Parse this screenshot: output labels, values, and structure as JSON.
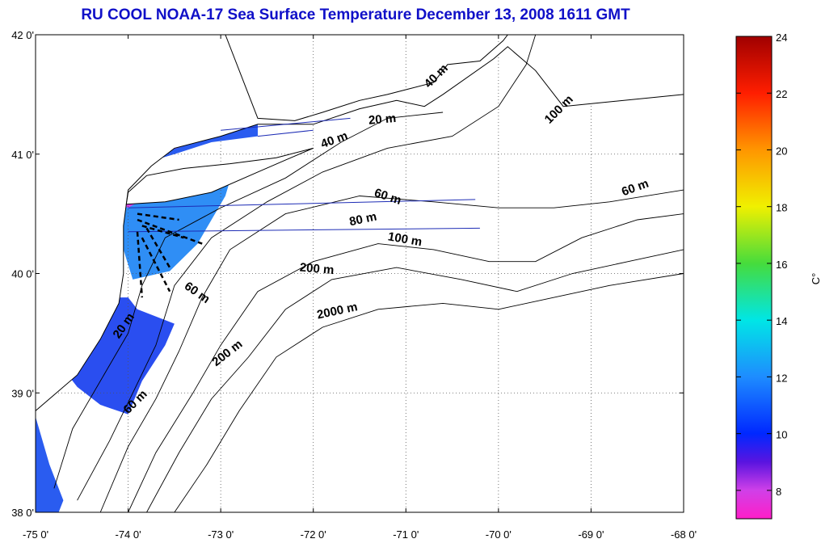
{
  "title": "RU COOL  NOAA-17 Sea Surface Temperature December 13, 2008 1611 GMT",
  "map": {
    "lon_range": [
      -75,
      -68
    ],
    "lat_range": [
      38,
      42
    ],
    "lon_ticks": [
      -75,
      -74,
      -73,
      -72,
      -71,
      -70,
      -69,
      -68
    ],
    "lat_ticks": [
      38,
      39,
      40,
      41,
      42
    ],
    "lon_tick_labels": [
      "-75 0'",
      "-74 0'",
      "-73 0'",
      "-72 0'",
      "-71 0'",
      "-70 0'",
      "-69 0'",
      "-68 0'"
    ],
    "lat_tick_labels": [
      "38 0'",
      "39 0'",
      "40 0'",
      "41 0'",
      "42 0'"
    ],
    "grid": "dotted",
    "land_color": "#ffffff",
    "coastline_color": "#000000"
  },
  "isobath_labels": [
    {
      "text": "20 m",
      "lon": -71.4,
      "lat": 41.25,
      "angle": -5
    },
    {
      "text": "40 m",
      "lon": -71.9,
      "lat": 41.05,
      "angle": -20
    },
    {
      "text": "40 m",
      "lon": -70.75,
      "lat": 41.55,
      "angle": -45
    },
    {
      "text": "100 m",
      "lon": -69.45,
      "lat": 41.25,
      "angle": -45
    },
    {
      "text": "60 m",
      "lon": -71.35,
      "lat": 40.65,
      "angle": 18
    },
    {
      "text": "60 m",
      "lon": -68.65,
      "lat": 40.65,
      "angle": -20
    },
    {
      "text": "80 m",
      "lon": -71.6,
      "lat": 40.4,
      "angle": -12
    },
    {
      "text": "100 m",
      "lon": -71.2,
      "lat": 40.28,
      "angle": 10
    },
    {
      "text": "200 m",
      "lon": -72.15,
      "lat": 40.02,
      "angle": 5
    },
    {
      "text": "60 m",
      "lon": -73.4,
      "lat": 39.88,
      "angle": 35
    },
    {
      "text": "2000 m",
      "lon": -71.95,
      "lat": 39.62,
      "angle": -12
    },
    {
      "text": "200 m",
      "lon": -73.05,
      "lat": 39.22,
      "angle": -38
    },
    {
      "text": "20 m",
      "lon": -74.1,
      "lat": 39.45,
      "angle": -55
    },
    {
      "text": "60 m",
      "lon": -74.0,
      "lat": 38.82,
      "angle": -45
    }
  ],
  "sst_patches": [
    {
      "name": "long-island-sound-patch",
      "color": "#2a5cf0",
      "points": [
        [
          -73.85,
          40.95
        ],
        [
          -73.6,
          41.12
        ],
        [
          -73.3,
          41.2
        ],
        [
          -73.0,
          41.3
        ],
        [
          -72.6,
          41.3
        ],
        [
          -72.6,
          41.15
        ],
        [
          -73.1,
          41.1
        ],
        [
          -73.5,
          41.0
        ],
        [
          -73.85,
          40.92
        ]
      ]
    },
    {
      "name": "ny-bight-patch",
      "color": "#2f8ef5",
      "points": [
        [
          -74.05,
          40.6
        ],
        [
          -73.5,
          40.72
        ],
        [
          -72.9,
          40.78
        ],
        [
          -72.95,
          40.65
        ],
        [
          -73.25,
          40.25
        ],
        [
          -73.55,
          40.02
        ],
        [
          -73.95,
          39.95
        ],
        [
          -74.05,
          40.2
        ]
      ]
    },
    {
      "name": "nj-shelf-patch",
      "color": "#2a4ef0",
      "points": [
        [
          -74.0,
          39.8
        ],
        [
          -73.9,
          39.7
        ],
        [
          -73.5,
          39.58
        ],
        [
          -73.6,
          39.4
        ],
        [
          -73.85,
          39.1
        ],
        [
          -74.0,
          38.82
        ],
        [
          -74.3,
          38.9
        ],
        [
          -74.55,
          39.05
        ],
        [
          -74.75,
          39.25
        ],
        [
          -74.45,
          39.6
        ],
        [
          -74.1,
          39.8
        ]
      ]
    },
    {
      "name": "delmarva-patch",
      "color": "#2a5cf0",
      "points": [
        [
          -75.0,
          38.8
        ],
        [
          -74.85,
          38.4
        ],
        [
          -74.7,
          38.1
        ],
        [
          -74.75,
          38.0
        ],
        [
          -75.0,
          38.0
        ]
      ]
    }
  ],
  "cold_fringe_patches": [
    {
      "name": "ct-shore-fringe",
      "color": "#e050e0",
      "points": [
        [
          -73.85,
          40.95
        ],
        [
          -73.6,
          41.02
        ],
        [
          -73.35,
          41.08
        ],
        [
          -73.6,
          41.1
        ],
        [
          -73.82,
          41.0
        ]
      ]
    },
    {
      "name": "li-south-fringe",
      "color": "#d040e0",
      "points": [
        [
          -74.0,
          40.55
        ],
        [
          -73.85,
          40.62
        ],
        [
          -74.0,
          40.65
        ],
        [
          -74.1,
          40.6
        ]
      ]
    }
  ],
  "colorbar": {
    "min": 7,
    "max": 24,
    "tick_values": [
      8,
      10,
      12,
      14,
      16,
      18,
      20,
      22,
      24
    ],
    "tick_labels": [
      "8",
      "10",
      "12",
      "14",
      "16",
      "18",
      "20",
      "22",
      "24"
    ],
    "unit_label": "C°",
    "stops": [
      {
        "value": 7,
        "color": "#ff1ec8"
      },
      {
        "value": 8,
        "color": "#d040e8"
      },
      {
        "value": 9,
        "color": "#5a14e0"
      },
      {
        "value": 10,
        "color": "#0028ff"
      },
      {
        "value": 12,
        "color": "#1e8cff"
      },
      {
        "value": 14,
        "color": "#00e6e6"
      },
      {
        "value": 16,
        "color": "#46dc3c"
      },
      {
        "value": 18,
        "color": "#f0f000"
      },
      {
        "value": 20,
        "color": "#ff9600"
      },
      {
        "value": 22,
        "color": "#ff1e00"
      },
      {
        "value": 24,
        "color": "#a00000"
      }
    ]
  }
}
